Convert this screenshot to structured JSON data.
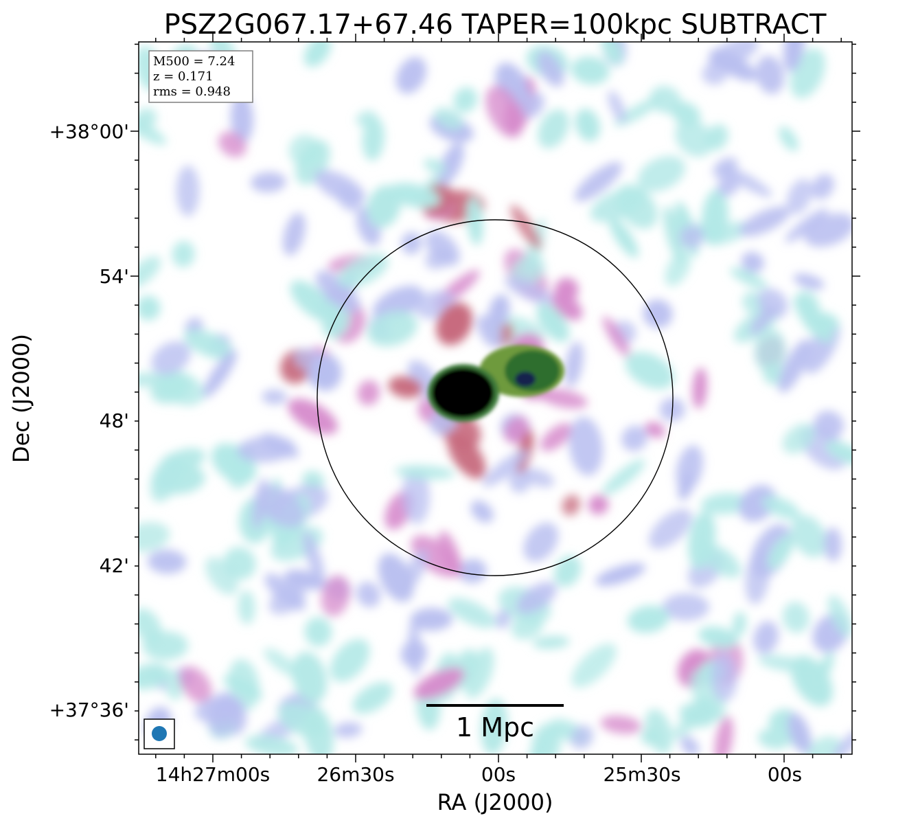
{
  "chart_data": {
    "type": "heatmap",
    "title": "PSZ2G067.17+67.46 TAPER=100kpc SUBTRACT",
    "xlabel": "RA (J2000)",
    "ylabel": "Dec (J2000)",
    "xticks": [
      "14h27m00s",
      "26m30s",
      "00s",
      "25m30s",
      "00s"
    ],
    "yticks": [
      "+38°00'",
      "54'",
      "48'",
      "42'",
      "+37°36'"
    ],
    "info": {
      "m500": "M500 = 7.24",
      "z": "z = 0.171",
      "rms": "rms = 0.948"
    },
    "scalebar_label": "1 Mpc",
    "colormap": [
      "#b2e8e6",
      "#b9bff0",
      "#d78ccc",
      "#c76a7d",
      "#6e9a3c",
      "#1f6a3a",
      "#0d1a4a",
      "#000000"
    ],
    "beam_color": "#1f77b4",
    "r500_circle": true,
    "grid": false
  }
}
